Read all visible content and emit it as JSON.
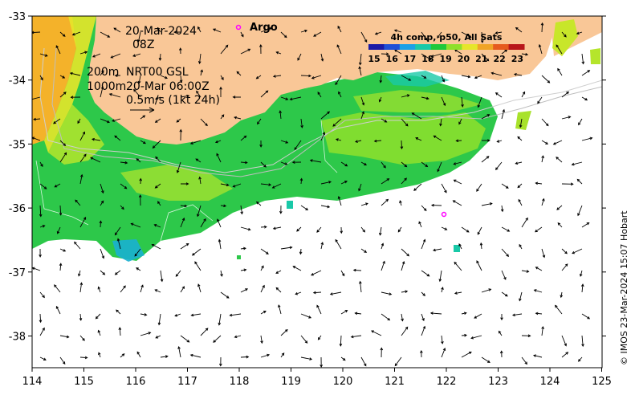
{
  "date": "20-Mar-2024",
  "hour": "08Z",
  "argo_label": "Argo",
  "contour_labels": [
    "200m",
    "1000m"
  ],
  "current_source": "NRT00 GSL",
  "current_time": "20-Mar 06:00Z",
  "scale_label": "0.5m/s (1kt 24h)",
  "credit": "© IMOS 23-Mar-2024 15:07 Hobart",
  "colorbar": {
    "title": "4h comp, p50, All Sats",
    "ticks": [
      "15",
      "16",
      "17",
      "18",
      "19",
      "20",
      "21",
      "22",
      "23"
    ],
    "colors": [
      "#1a1aa6",
      "#1f4fd6",
      "#1aa0e6",
      "#19c9a8",
      "#1ec83a",
      "#8fe02b",
      "#e6e62a",
      "#f0a426",
      "#e65a1e",
      "#b8161a"
    ]
  },
  "axes": {
    "lon_ticks": [
      "114",
      "115",
      "116",
      "117",
      "118",
      "119",
      "120",
      "121",
      "122",
      "123",
      "124",
      "125"
    ],
    "lat_ticks": [
      "-33",
      "-34",
      "-35",
      "-36",
      "-37",
      "-38"
    ]
  },
  "colors": {
    "land": "#f9c797",
    "argo": "#ff00ff"
  }
}
